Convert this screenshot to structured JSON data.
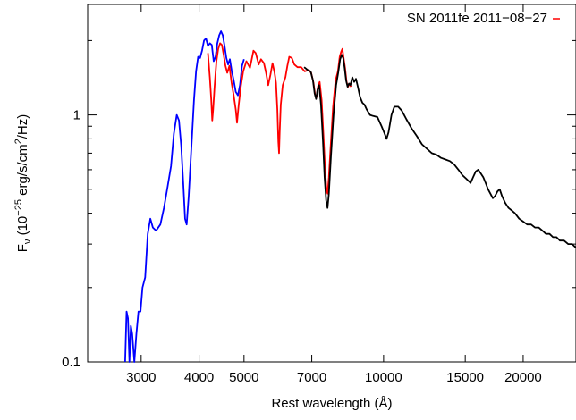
{
  "chart_data": {
    "type": "line",
    "legend": {
      "label": "SN 2011fe 2011−08−27",
      "position": "top-right"
    },
    "x_axis": {
      "label": "Rest wavelength (Å)",
      "scale": "log",
      "range": [
        2300,
        26000
      ],
      "ticks": [
        3000,
        4000,
        5000,
        7000,
        10000,
        15000,
        20000
      ],
      "tick_labels": [
        "3000",
        "4000",
        "5000",
        "7000",
        "10000",
        "15000",
        "20000"
      ]
    },
    "y_axis": {
      "label_prefix": "F",
      "label_sub": "ν",
      "label_mid": " (10",
      "label_sup1": "−25",
      "label_mid2": " erg/s/cm",
      "label_sup2": "2",
      "label_suffix": "/Hz)",
      "scale": "log",
      "range": [
        0.1,
        2.8
      ],
      "ticks": [
        0.1,
        1
      ],
      "tick_labels": [
        "0.1",
        "1"
      ]
    },
    "grid": false,
    "series": [
      {
        "color": "#0000ff",
        "points": [
          [
            2770,
            0.09
          ],
          [
            2790,
            0.16
          ],
          [
            2810,
            0.15
          ],
          [
            2830,
            0.09
          ],
          [
            2850,
            0.14
          ],
          [
            2870,
            0.13
          ],
          [
            2900,
            0.09
          ],
          [
            2930,
            0.13
          ],
          [
            2960,
            0.16
          ],
          [
            2990,
            0.16
          ],
          [
            3020,
            0.2
          ],
          [
            3060,
            0.22
          ],
          [
            3100,
            0.33
          ],
          [
            3140,
            0.38
          ],
          [
            3180,
            0.35
          ],
          [
            3230,
            0.34
          ],
          [
            3300,
            0.36
          ],
          [
            3360,
            0.42
          ],
          [
            3420,
            0.51
          ],
          [
            3480,
            0.62
          ],
          [
            3530,
            0.84
          ],
          [
            3580,
            1.0
          ],
          [
            3620,
            0.95
          ],
          [
            3660,
            0.75
          ],
          [
            3700,
            0.52
          ],
          [
            3730,
            0.38
          ],
          [
            3760,
            0.36
          ],
          [
            3800,
            0.47
          ],
          [
            3850,
            0.74
          ],
          [
            3900,
            1.15
          ],
          [
            3940,
            1.5
          ],
          [
            3980,
            1.72
          ],
          [
            4020,
            1.7
          ],
          [
            4060,
            1.82
          ],
          [
            4100,
            2.0
          ],
          [
            4140,
            2.04
          ],
          [
            4180,
            1.9
          ],
          [
            4220,
            1.95
          ],
          [
            4260,
            1.92
          ],
          [
            4300,
            1.65
          ],
          [
            4340,
            1.72
          ],
          [
            4380,
            1.95
          ],
          [
            4420,
            2.1
          ],
          [
            4460,
            2.18
          ],
          [
            4500,
            2.1
          ],
          [
            4540,
            1.9
          ],
          [
            4580,
            1.7
          ],
          [
            4620,
            1.6
          ],
          [
            4660,
            1.68
          ],
          [
            4700,
            1.52
          ],
          [
            4750,
            1.38
          ],
          [
            4800,
            1.24
          ],
          [
            4850,
            1.2
          ],
          [
            4900,
            1.32
          ],
          [
            4950,
            1.58
          ],
          [
            5000,
            1.68
          ]
        ]
      },
      {
        "color": "#ff0000",
        "points": [
          [
            4180,
            1.78
          ],
          [
            4220,
            1.42
          ],
          [
            4250,
            1.15
          ],
          [
            4270,
            0.95
          ],
          [
            4290,
            1.05
          ],
          [
            4320,
            1.3
          ],
          [
            4360,
            1.65
          ],
          [
            4400,
            1.85
          ],
          [
            4440,
            1.95
          ],
          [
            4480,
            1.92
          ],
          [
            4520,
            1.75
          ],
          [
            4560,
            1.58
          ],
          [
            4600,
            1.48
          ],
          [
            4650,
            1.58
          ],
          [
            4700,
            1.35
          ],
          [
            4750,
            1.2
          ],
          [
            4800,
            1.05
          ],
          [
            4830,
            0.93
          ],
          [
            4870,
            1.1
          ],
          [
            4920,
            1.3
          ],
          [
            4980,
            1.5
          ],
          [
            5060,
            1.65
          ],
          [
            5150,
            1.55
          ],
          [
            5240,
            1.82
          ],
          [
            5300,
            1.78
          ],
          [
            5380,
            1.6
          ],
          [
            5440,
            1.68
          ],
          [
            5520,
            1.62
          ],
          [
            5580,
            1.48
          ],
          [
            5640,
            1.32
          ],
          [
            5700,
            1.45
          ],
          [
            5760,
            1.62
          ],
          [
            5820,
            1.48
          ],
          [
            5860,
            1.35
          ],
          [
            5900,
            1.05
          ],
          [
            5930,
            0.78
          ],
          [
            5950,
            0.7
          ],
          [
            5970,
            0.85
          ],
          [
            6000,
            1.1
          ],
          [
            6060,
            1.32
          ],
          [
            6140,
            1.42
          ],
          [
            6200,
            1.58
          ],
          [
            6260,
            1.72
          ],
          [
            6340,
            1.7
          ],
          [
            6420,
            1.6
          ],
          [
            6520,
            1.56
          ],
          [
            6640,
            1.56
          ],
          [
            6760,
            1.5
          ],
          [
            6900,
            1.52
          ],
          [
            6980,
            1.48
          ],
          [
            7060,
            1.35
          ],
          [
            7120,
            1.2
          ],
          [
            7170,
            1.18
          ],
          [
            7220,
            1.3
          ],
          [
            7280,
            1.36
          ],
          [
            7350,
            1.15
          ],
          [
            7420,
            0.82
          ],
          [
            7480,
            0.6
          ],
          [
            7530,
            0.5
          ],
          [
            7570,
            0.48
          ],
          [
            7620,
            0.56
          ],
          [
            7700,
            0.78
          ],
          [
            7780,
            1.08
          ],
          [
            7880,
            1.38
          ],
          [
            7970,
            1.5
          ],
          [
            8040,
            1.72
          ],
          [
            8100,
            1.8
          ],
          [
            8150,
            1.85
          ],
          [
            8200,
            1.7
          ],
          [
            8260,
            1.55
          ],
          [
            8320,
            1.36
          ],
          [
            8380,
            1.3
          ],
          [
            8440,
            1.34
          ],
          [
            8500,
            1.3
          ]
        ]
      },
      {
        "color": "#000000",
        "points": [
          [
            6740,
            1.56
          ],
          [
            6860,
            1.52
          ],
          [
            6960,
            1.5
          ],
          [
            7040,
            1.38
          ],
          [
            7100,
            1.22
          ],
          [
            7150,
            1.16
          ],
          [
            7200,
            1.26
          ],
          [
            7260,
            1.32
          ],
          [
            7330,
            1.1
          ],
          [
            7400,
            0.78
          ],
          [
            7460,
            0.56
          ],
          [
            7520,
            0.45
          ],
          [
            7570,
            0.42
          ],
          [
            7620,
            0.48
          ],
          [
            7700,
            0.68
          ],
          [
            7800,
            1.0
          ],
          [
            7900,
            1.32
          ],
          [
            7980,
            1.48
          ],
          [
            8060,
            1.68
          ],
          [
            8120,
            1.75
          ],
          [
            8180,
            1.7
          ],
          [
            8240,
            1.55
          ],
          [
            8300,
            1.38
          ],
          [
            8360,
            1.3
          ],
          [
            8420,
            1.34
          ],
          [
            8480,
            1.32
          ],
          [
            8560,
            1.42
          ],
          [
            8640,
            1.36
          ],
          [
            8720,
            1.4
          ],
          [
            8800,
            1.3
          ],
          [
            8900,
            1.18
          ],
          [
            9000,
            1.12
          ],
          [
            9100,
            1.1
          ],
          [
            9200,
            1.05
          ],
          [
            9350,
            1.0
          ],
          [
            9500,
            0.99
          ],
          [
            9700,
            0.98
          ],
          [
            9900,
            0.9
          ],
          [
            10050,
            0.84
          ],
          [
            10150,
            0.8
          ],
          [
            10250,
            0.85
          ],
          [
            10400,
            1.0
          ],
          [
            10550,
            1.08
          ],
          [
            10750,
            1.08
          ],
          [
            10950,
            1.04
          ],
          [
            11200,
            0.96
          ],
          [
            11500,
            0.88
          ],
          [
            11800,
            0.82
          ],
          [
            12100,
            0.76
          ],
          [
            12400,
            0.73
          ],
          [
            12700,
            0.7
          ],
          [
            13000,
            0.69
          ],
          [
            13300,
            0.67
          ],
          [
            13600,
            0.66
          ],
          [
            13900,
            0.65
          ],
          [
            14200,
            0.63
          ],
          [
            14500,
            0.6
          ],
          [
            14800,
            0.57
          ],
          [
            15100,
            0.55
          ],
          [
            15400,
            0.53
          ],
          [
            15600,
            0.56
          ],
          [
            15800,
            0.59
          ],
          [
            16000,
            0.6
          ],
          [
            16200,
            0.58
          ],
          [
            16400,
            0.56
          ],
          [
            16600,
            0.53
          ],
          [
            16800,
            0.5
          ],
          [
            17000,
            0.48
          ],
          [
            17200,
            0.46
          ],
          [
            17400,
            0.47
          ],
          [
            17600,
            0.49
          ],
          [
            17800,
            0.5
          ],
          [
            18000,
            0.47
          ],
          [
            18300,
            0.44
          ],
          [
            18600,
            0.42
          ],
          [
            18900,
            0.41
          ],
          [
            19200,
            0.4
          ],
          [
            19600,
            0.38
          ],
          [
            20000,
            0.37
          ],
          [
            20400,
            0.36
          ],
          [
            20800,
            0.36
          ],
          [
            21200,
            0.35
          ],
          [
            21600,
            0.35
          ],
          [
            22000,
            0.34
          ],
          [
            22400,
            0.33
          ],
          [
            22800,
            0.33
          ],
          [
            23200,
            0.32
          ],
          [
            23600,
            0.32
          ],
          [
            24000,
            0.31
          ],
          [
            24500,
            0.31
          ],
          [
            25000,
            0.3
          ],
          [
            25500,
            0.3
          ],
          [
            26000,
            0.29
          ]
        ]
      }
    ]
  }
}
